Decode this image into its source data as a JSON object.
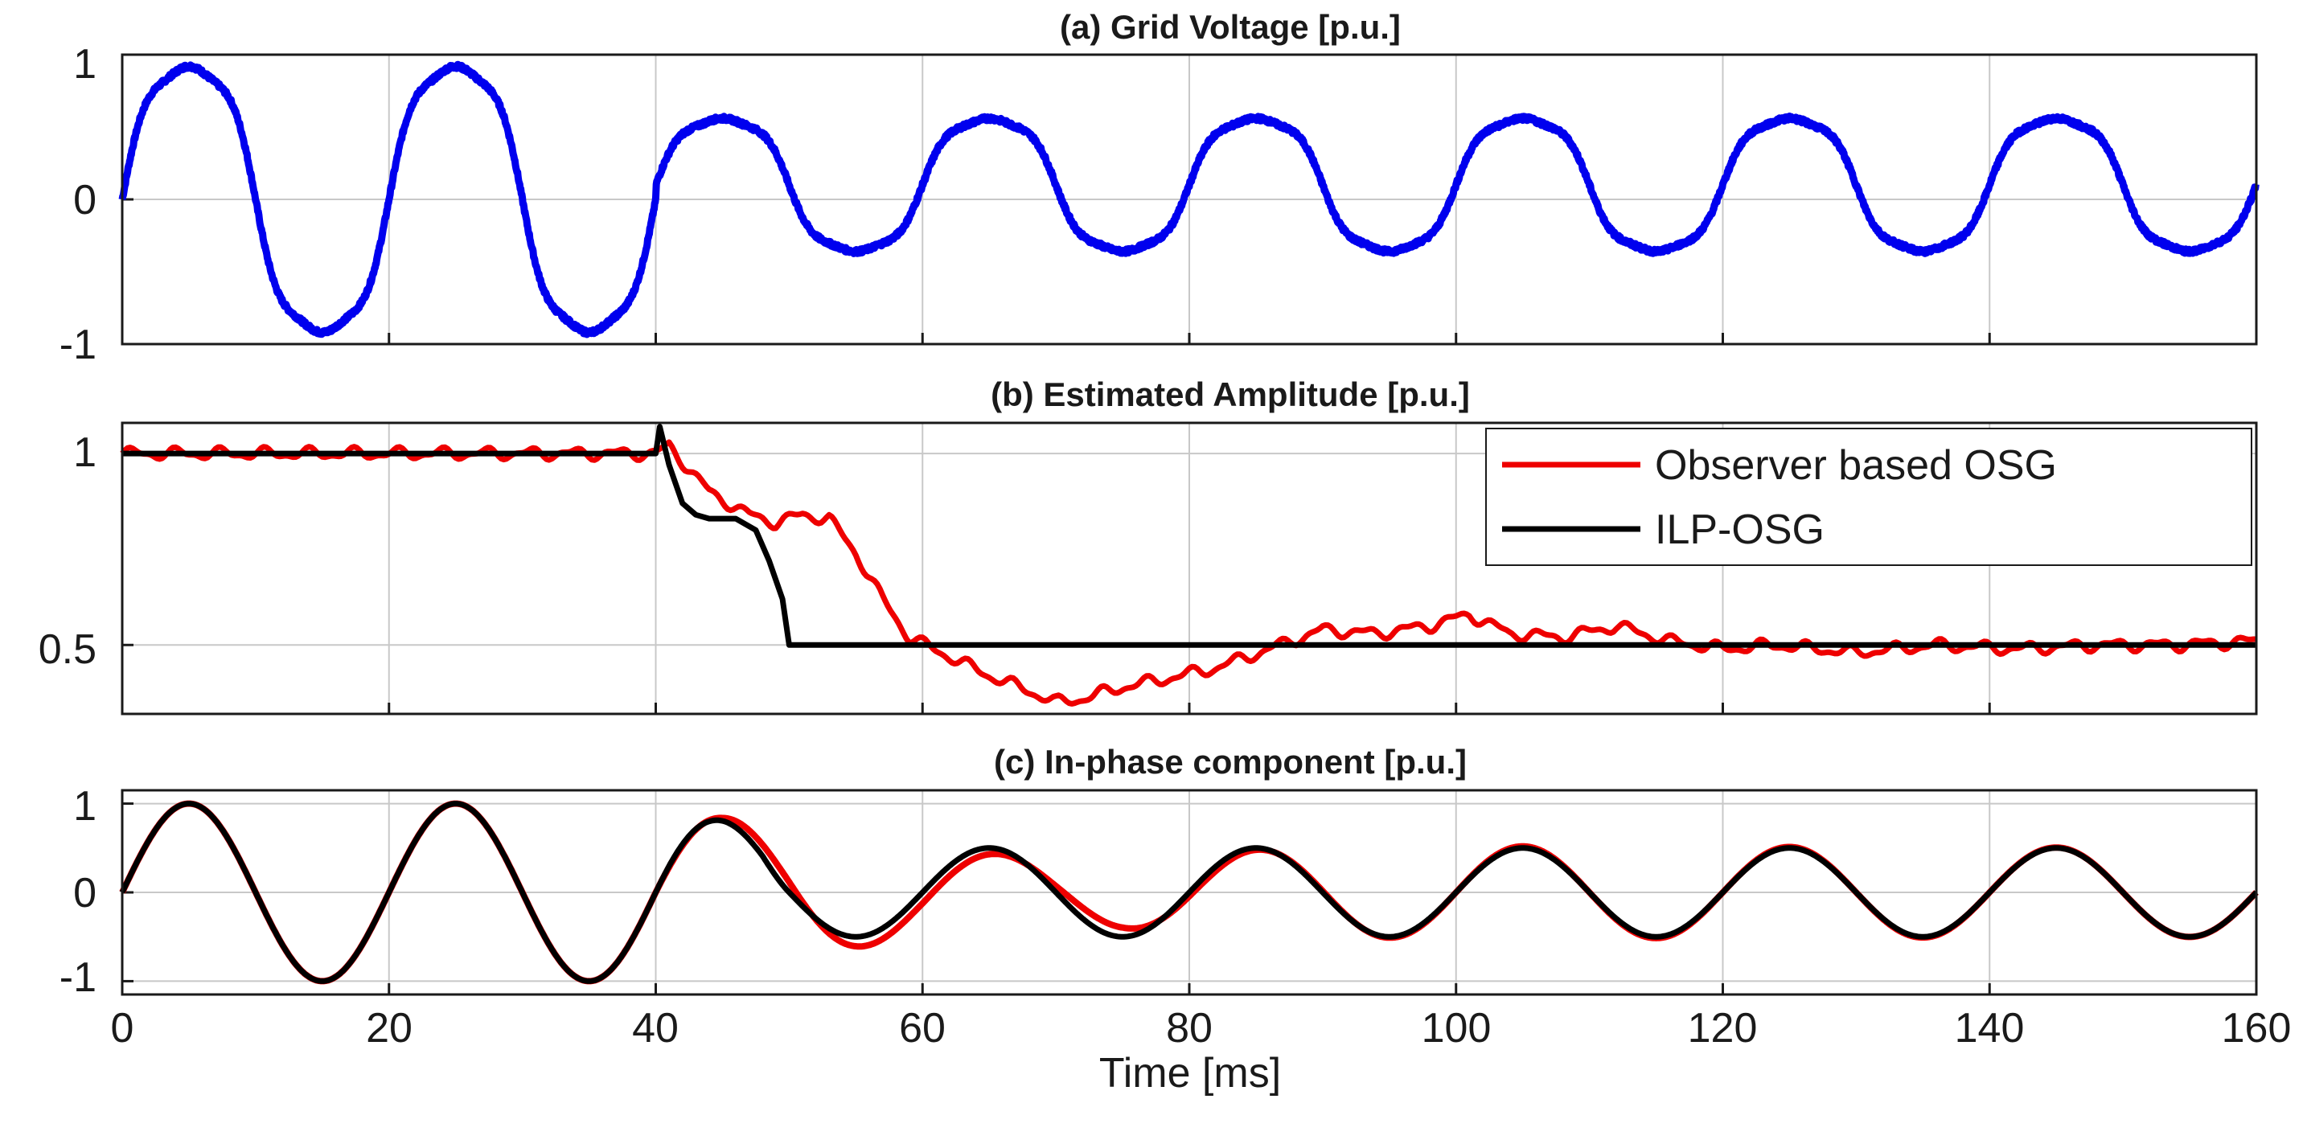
{
  "chart_data": [
    {
      "type": "line",
      "id": "a",
      "title": "(a) Grid Voltage [p.u.]",
      "xlim": [
        0,
        160
      ],
      "ylim": [
        -1,
        1
      ],
      "yticks": [
        "1",
        "0",
        "-1"
      ],
      "ytick_values": [
        1,
        0,
        -1
      ],
      "xticks": [
        0,
        20,
        40,
        60,
        80,
        100,
        120,
        140,
        160
      ],
      "grid": true,
      "series": [
        {
          "name": "Grid voltage",
          "color": "#0000ee",
          "frequency_hz": 50,
          "segments": [
            {
              "t_start": 0,
              "t_end": 40,
              "fundamental_amplitude": 1.0,
              "third_harmonic": 0.12,
              "fifth_harmonic": 0.04,
              "dc_offset": 0.0
            },
            {
              "t_start": 40,
              "t_end": 160,
              "fundamental_amplitude": 0.5,
              "third_harmonic": 0.12,
              "fifth_harmonic": 0.04,
              "dc_offset": 0.1
            }
          ],
          "noise": 0.03
        }
      ]
    },
    {
      "type": "line",
      "id": "b",
      "title": "(b) Estimated Amplitude [p.u.]",
      "xlim": [
        0,
        160
      ],
      "ylim": [
        0.32,
        1.08
      ],
      "yticks": [
        "1",
        "0.5"
      ],
      "ytick_values": [
        1,
        0.5
      ],
      "xticks": [
        0,
        20,
        40,
        60,
        80,
        100,
        120,
        140,
        160
      ],
      "grid": true,
      "legend_position": "top-right",
      "series": [
        {
          "name": "Observer based OSG",
          "color": "#ee0000",
          "x": [
            0,
            40,
            41,
            44,
            47,
            49,
            51,
            53,
            55,
            57,
            59,
            62,
            65,
            68,
            70,
            72,
            75,
            78,
            82,
            86,
            90,
            94,
            98,
            101,
            104,
            108,
            112,
            116,
            120,
            124,
            130,
            136,
            142,
            148,
            154,
            160
          ],
          "y": [
            1.0,
            1.0,
            1.02,
            0.9,
            0.84,
            0.82,
            0.84,
            0.83,
            0.74,
            0.62,
            0.52,
            0.47,
            0.42,
            0.38,
            0.35,
            0.36,
            0.39,
            0.41,
            0.44,
            0.49,
            0.54,
            0.53,
            0.55,
            0.58,
            0.53,
            0.52,
            0.55,
            0.51,
            0.49,
            0.5,
            0.48,
            0.5,
            0.49,
            0.5,
            0.5,
            0.51
          ],
          "ripple": 0.012
        },
        {
          "name": "ILP-OSG",
          "color": "#000000",
          "x": [
            0,
            40,
            40.3,
            41,
            42,
            43,
            44,
            46,
            47.5,
            48.5,
            49.5,
            50,
            160
          ],
          "y": [
            1.0,
            1.0,
            1.07,
            0.97,
            0.87,
            0.84,
            0.83,
            0.83,
            0.8,
            0.72,
            0.62,
            0.5,
            0.5
          ]
        }
      ]
    },
    {
      "type": "line",
      "id": "c",
      "title": "(c) In-phase component [p.u.]",
      "xlim": [
        0,
        160
      ],
      "ylim": [
        -1.15,
        1.15
      ],
      "yticks": [
        "1",
        "0",
        "-1"
      ],
      "ytick_values": [
        1,
        0,
        -1
      ],
      "xticks": [
        "0",
        "20",
        "40",
        "60",
        "80",
        "100",
        "120",
        "140",
        "160"
      ],
      "xtick_values": [
        0,
        20,
        40,
        60,
        80,
        100,
        120,
        140,
        160
      ],
      "xlabel": "Time [ms]",
      "grid": true,
      "series": [
        {
          "name": "Observer based OSG",
          "color": "#ee0000",
          "frequency_hz": 50,
          "amplitude_points": {
            "x": [
              0,
              40,
              45,
              50,
              55,
              60,
              65,
              70,
              75,
              80,
              90,
              100,
              160
            ],
            "y": [
              1.0,
              1.0,
              0.84,
              0.75,
              0.62,
              0.5,
              0.44,
              0.38,
              0.4,
              0.46,
              0.5,
              0.52,
              0.5
            ]
          },
          "phase_lag_ms": {
            "x": [
              0,
              40,
              50,
              60,
              70,
              80,
              95,
              160
            ],
            "y": [
              0,
              0,
              0.5,
              0.8,
              0.6,
              0.3,
              0,
              0
            ]
          }
        },
        {
          "name": "ILP-OSG",
          "color": "#000000",
          "frequency_hz": 50,
          "amplitude_points": {
            "x": [
              0,
              40,
              44,
              48,
              50,
              160
            ],
            "y": [
              1.0,
              1.0,
              0.84,
              0.7,
              0.5,
              0.5
            ]
          }
        }
      ]
    }
  ]
}
